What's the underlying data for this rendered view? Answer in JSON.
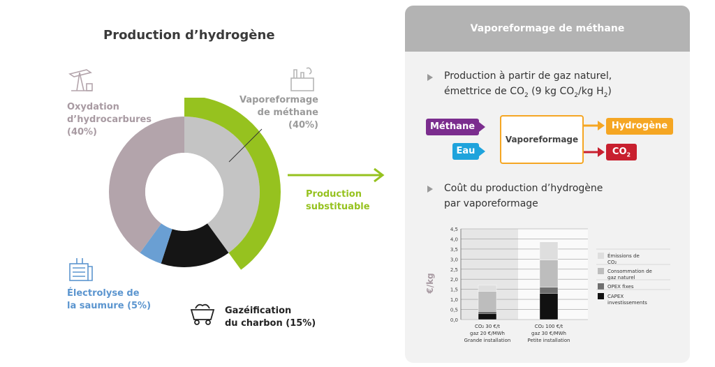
{
  "title": "Production d’hydrogène",
  "donut": {
    "segments": [
      {
        "name": "Vaporeformage de méthane",
        "value": 40,
        "color": "#c4c4c4"
      },
      {
        "name": "Gazéification du charbon",
        "value": 15,
        "color": "#151515"
      },
      {
        "name": "Électrolyse de la saumure",
        "value": 5,
        "color": "#6a9fd3"
      },
      {
        "name": "Oxydation d’hydrocarbures",
        "value": 40,
        "color": "#b3a4ab"
      }
    ],
    "highlight_color": "#96c21f"
  },
  "labels": {
    "oxydation": [
      "Oxydation",
      "d’hydrocarbures",
      "(40%)"
    ],
    "vapo": [
      "Vaporeformage",
      "de méthane",
      "(40%)"
    ],
    "electrolyse": [
      "Électrolyse de",
      "la saumure (5%)"
    ],
    "gazeification": [
      "Gazéification",
      "du charbon (15%)"
    ],
    "substituable": [
      "Production",
      "substituable"
    ]
  },
  "panel": {
    "header": "Vaporeformage de méthane",
    "bullet1_line1": "Production à partir de gaz naturel,",
    "bullet1_line2_pre": "émettrice de CO",
    "bullet1_line2_mid": " (9 kg CO",
    "bullet1_line2_post": "/kg H",
    "bullet1_line2_end": ")",
    "flow": {
      "methane": "Méthane",
      "eau": "Eau",
      "center": "Vaporeformage",
      "hydrogene": "Hydrogène",
      "co2": "CO",
      "colors": {
        "methane": "#7b2d8e",
        "eau": "#1fa3dc",
        "hydrogene": "#f5a623",
        "co2": "#c8202f"
      }
    },
    "bullet2_line1": "Coût du production d’hydrogène",
    "bullet2_line2": "par vaporeformage"
  },
  "chart_data": {
    "type": "bar",
    "stacked": true,
    "ylabel": "€/kg",
    "ylim": [
      0,
      4.5
    ],
    "yticks": [
      "0,0",
      "0,5",
      "1,0",
      "1,5",
      "2,0",
      "2,5",
      "3,0",
      "3,5",
      "4,0",
      "4,5"
    ],
    "categories": [
      [
        "CO₂ 30 €/t",
        "gaz 20 €/MWh",
        "Grande installation"
      ],
      [
        "CO₂ 100 €/t",
        "gaz 30 €/MWh",
        "Petite installation"
      ]
    ],
    "series": [
      {
        "name": "CAPEX investissements",
        "values": [
          0.3,
          1.3
        ],
        "color": "#111111"
      },
      {
        "name": "OPEX fixes",
        "values": [
          0.1,
          0.3
        ],
        "color": "#6f6f6f"
      },
      {
        "name": "Consommation de gaz naturel",
        "values": [
          1.0,
          1.35
        ],
        "color": "#bdbdbd"
      },
      {
        "name": "Émissions de CO₂",
        "values": [
          0.3,
          0.9
        ],
        "color": "#dedede"
      }
    ],
    "legend_order": [
      3,
      2,
      1,
      0
    ]
  }
}
